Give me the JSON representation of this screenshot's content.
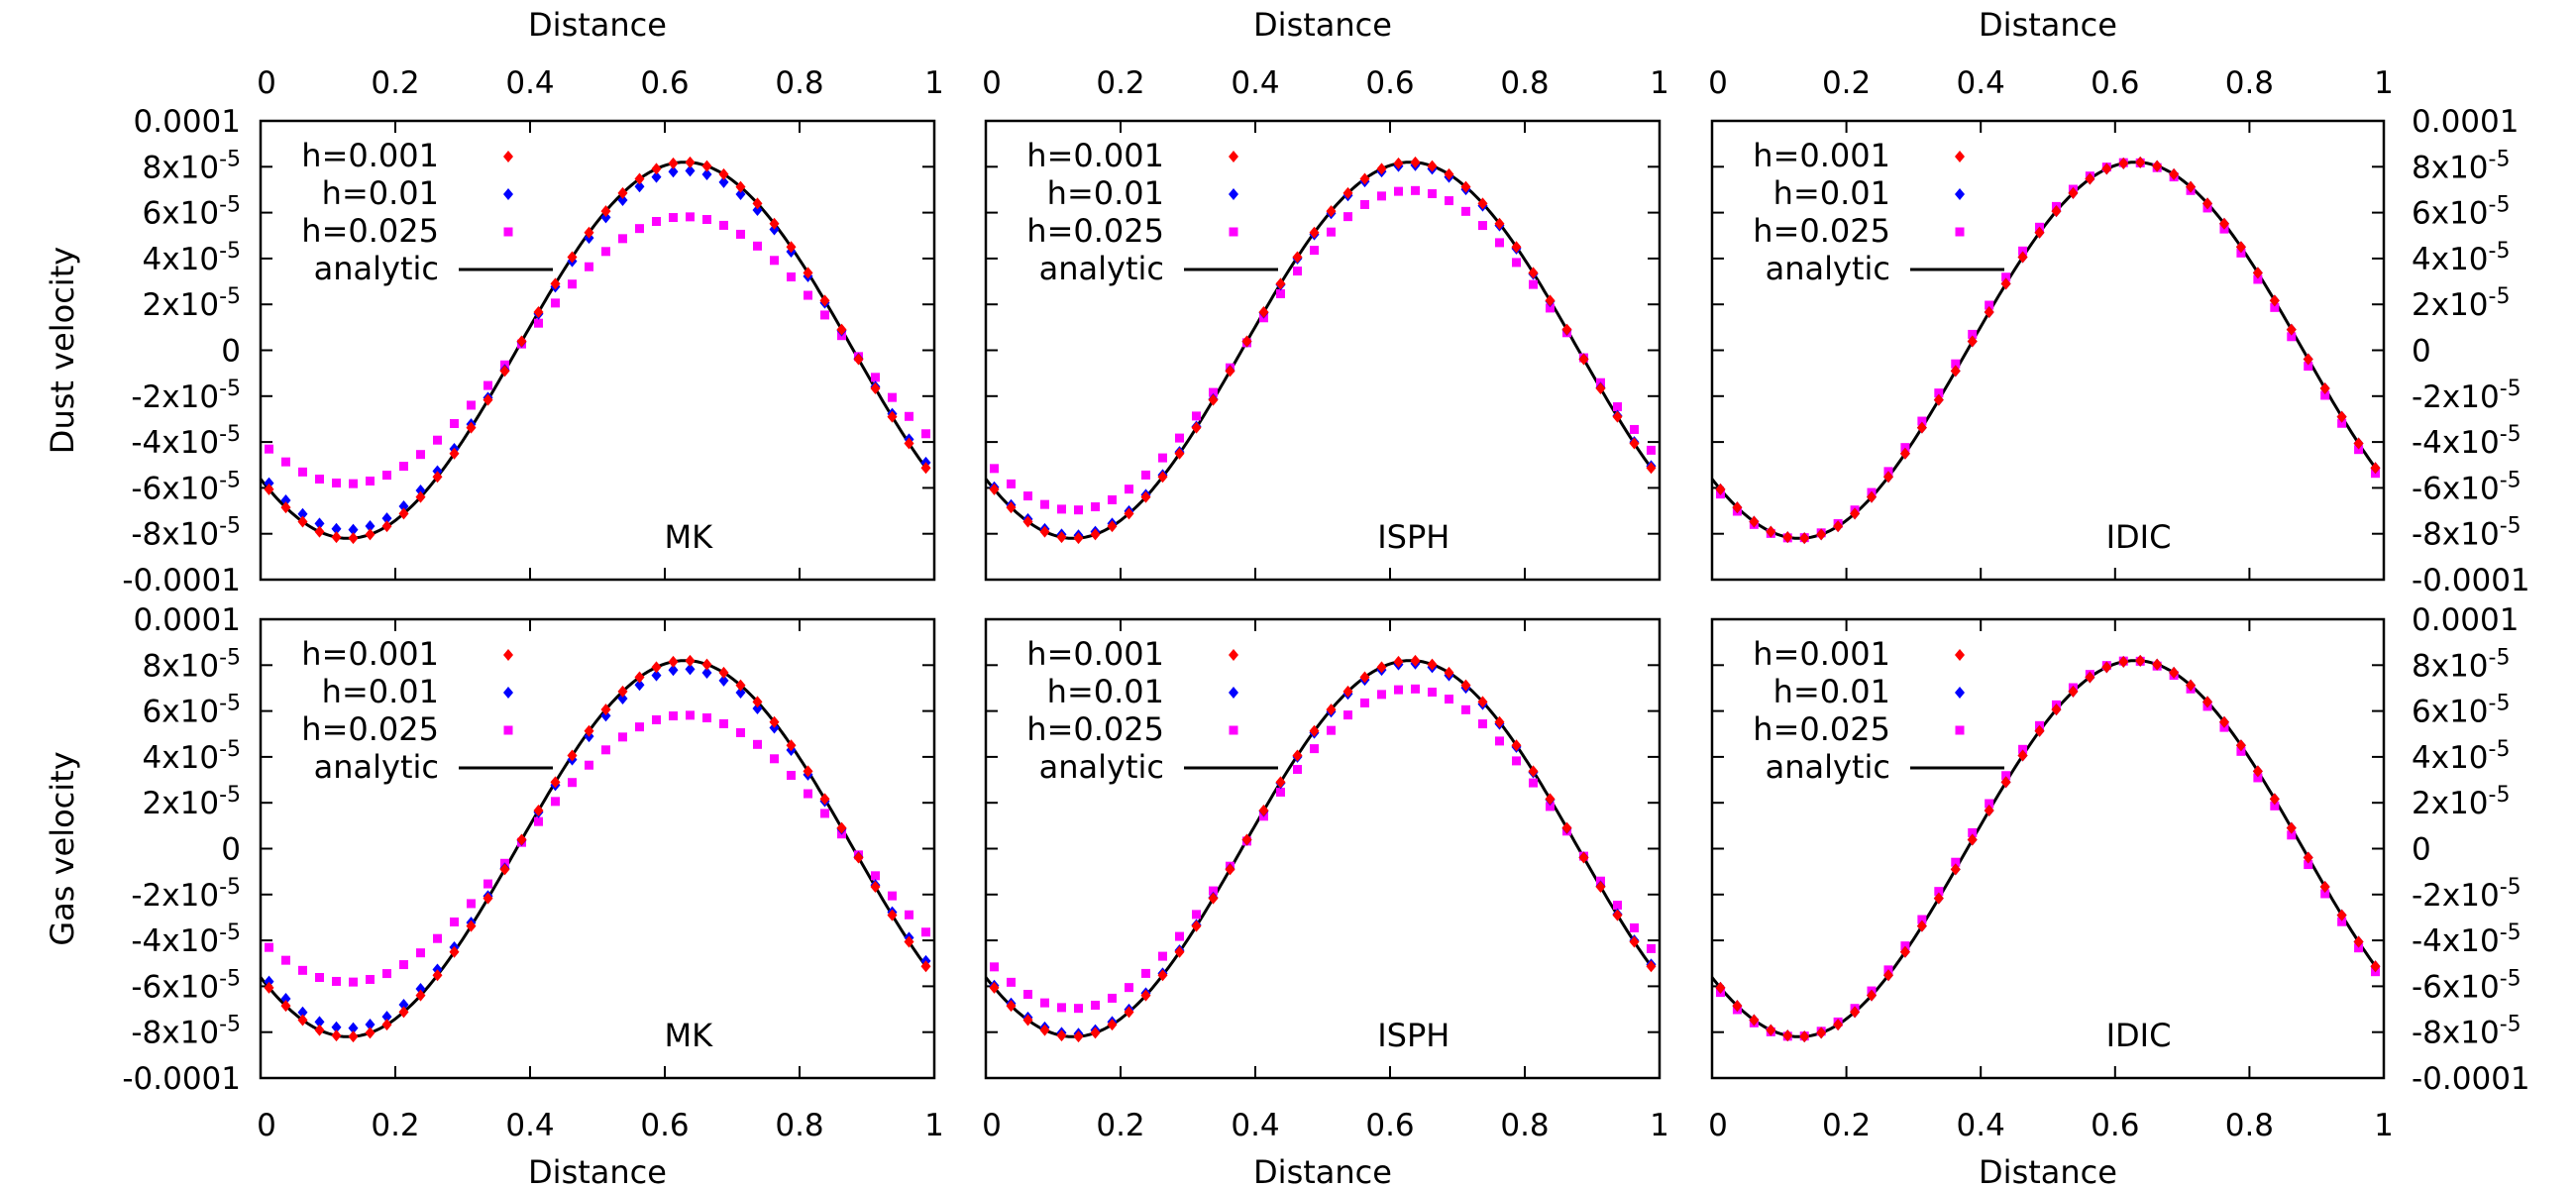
{
  "chart_data": {
    "type": "scatter",
    "layout": "2 rows x 3 columns",
    "xlabel": "Distance",
    "x_ticks": [
      "0",
      "0.2",
      "0.4",
      "0.6",
      "0.8",
      "1"
    ],
    "y_ticks": [
      "-0.0001",
      "-8x10-5",
      "-6x10-5",
      "-4x10-5",
      "-2x10-5",
      "0",
      "2x10-5",
      "4x10-5",
      "6x10-5",
      "8x10-5",
      "0.0001"
    ],
    "xlim": [
      0,
      1
    ],
    "ylim": [
      -0.0001,
      0.0001
    ],
    "analytic": {
      "amplitude": 8.2e-05,
      "x_peak": 0.63,
      "x_trough": 0.13
    },
    "colors": {
      "h=0.001": "#ff0000",
      "h=0.01": "#0000ff",
      "h=0.025": "#ff00ff",
      "analytic": "#000000"
    },
    "rows": [
      {
        "ylabel": "Dust velocity"
      },
      {
        "ylabel": "Gas velocity"
      }
    ],
    "panels": [
      {
        "row": 0,
        "col": 0,
        "label": "MK",
        "series": [
          {
            "name": "h=0.001",
            "amplitude_factor": 1.0,
            "marker": "diamond"
          },
          {
            "name": "h=0.01",
            "amplitude_factor": 0.955,
            "marker": "diamond"
          },
          {
            "name": "h=0.025",
            "amplitude_factor": 0.71,
            "marker": "square"
          },
          {
            "name": "analytic",
            "style": "line"
          }
        ]
      },
      {
        "row": 0,
        "col": 1,
        "label": "ISPH",
        "series": [
          {
            "name": "h=0.001",
            "amplitude_factor": 1.0,
            "marker": "diamond"
          },
          {
            "name": "h=0.01",
            "amplitude_factor": 0.985,
            "marker": "diamond"
          },
          {
            "name": "h=0.025",
            "amplitude_factor": 0.85,
            "marker": "square"
          },
          {
            "name": "analytic",
            "style": "line"
          }
        ]
      },
      {
        "row": 0,
        "col": 2,
        "label": "IDIC",
        "series": [
          {
            "name": "h=0.001",
            "amplitude_factor": 1.0,
            "marker": "diamond"
          },
          {
            "name": "h=0.01",
            "amplitude_factor": 1.0,
            "marker": "diamond"
          },
          {
            "name": "h=0.025",
            "amplitude_factor": 1.0,
            "marker": "square",
            "phase_shift": -0.006
          },
          {
            "name": "analytic",
            "style": "line"
          }
        ]
      },
      {
        "row": 1,
        "col": 0,
        "label": "MK",
        "series": [
          {
            "name": "h=0.001",
            "amplitude_factor": 1.0,
            "marker": "diamond"
          },
          {
            "name": "h=0.01",
            "amplitude_factor": 0.955,
            "marker": "diamond"
          },
          {
            "name": "h=0.025",
            "amplitude_factor": 0.71,
            "marker": "square"
          },
          {
            "name": "analytic",
            "style": "line"
          }
        ]
      },
      {
        "row": 1,
        "col": 1,
        "label": "ISPH",
        "series": [
          {
            "name": "h=0.001",
            "amplitude_factor": 1.0,
            "marker": "diamond"
          },
          {
            "name": "h=0.01",
            "amplitude_factor": 0.985,
            "marker": "diamond"
          },
          {
            "name": "h=0.025",
            "amplitude_factor": 0.85,
            "marker": "square"
          },
          {
            "name": "analytic",
            "style": "line"
          }
        ]
      },
      {
        "row": 1,
        "col": 2,
        "label": "IDIC",
        "series": [
          {
            "name": "h=0.001",
            "amplitude_factor": 1.0,
            "marker": "diamond"
          },
          {
            "name": "h=0.01",
            "amplitude_factor": 1.0,
            "marker": "diamond"
          },
          {
            "name": "h=0.025",
            "amplitude_factor": 1.0,
            "marker": "square",
            "phase_shift": -0.006
          },
          {
            "name": "analytic",
            "style": "line"
          }
        ]
      }
    ]
  }
}
